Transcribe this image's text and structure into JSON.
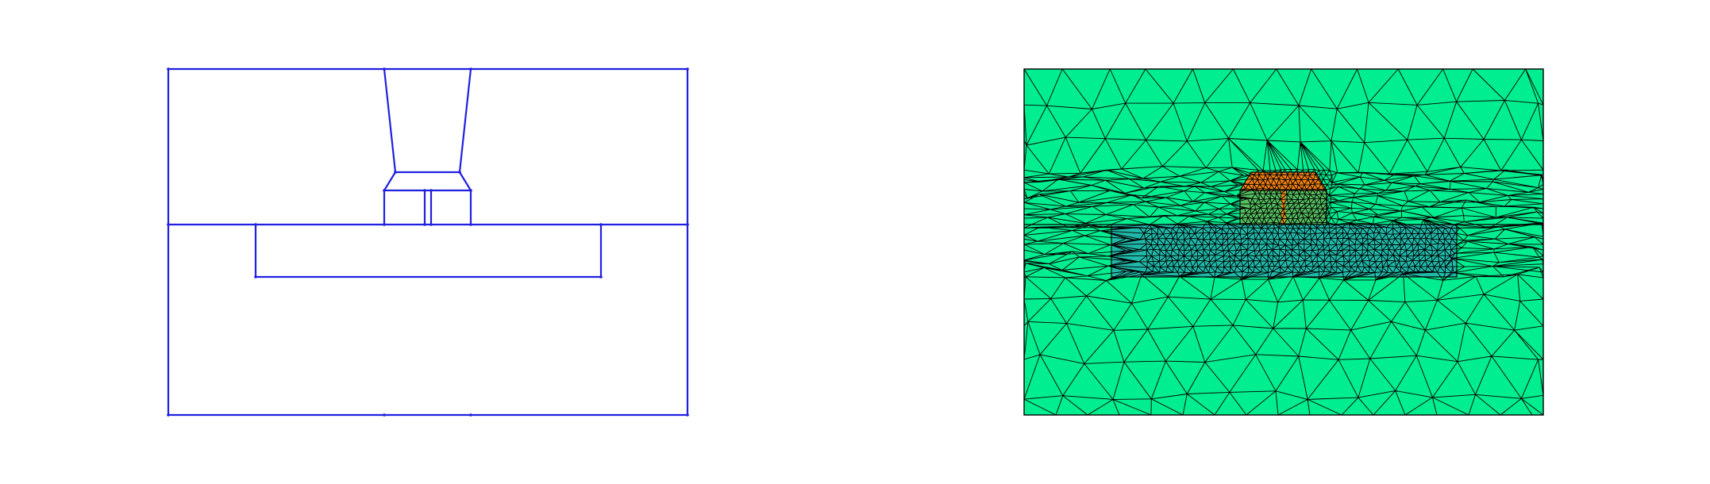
{
  "colors": {
    "background": "#ffffff",
    "geometry_stroke": "#2020e0",
    "mesh_stroke": "#000000",
    "substrate_fill": "#00ee90",
    "cavity_fill": "#20b8a8",
    "gate_fill": "#f08010",
    "spacer_fill": "#55c060"
  },
  "panels": [
    {
      "name": "geometry-outline",
      "kind": "outline"
    },
    {
      "name": "triangular-mesh",
      "kind": "mesh"
    }
  ]
}
